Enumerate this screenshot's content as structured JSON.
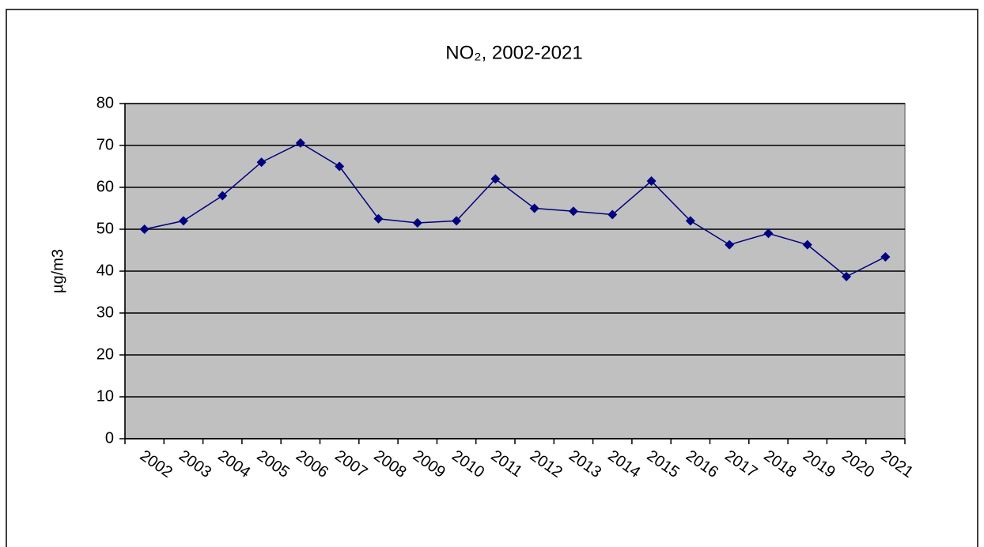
{
  "chart_data": {
    "type": "line",
    "title": "NO₂, 2002-2021",
    "y_label": "µg/m3",
    "categories": [
      "2002",
      "2003",
      "2004",
      "2005",
      "2006",
      "2007",
      "2008",
      "2009",
      "2010",
      "2011",
      "2012",
      "2013",
      "2014",
      "2015",
      "2016",
      "2017",
      "2018",
      "2019",
      "2020",
      "2021"
    ],
    "values": [
      50,
      52,
      58,
      66,
      70.6,
      65,
      52.5,
      51.5,
      52,
      62,
      55,
      54.3,
      53.5,
      61.5,
      52,
      46.3,
      49,
      46.3,
      38.7,
      43.4
    ],
    "color": "#000080",
    "ylim": [
      0,
      80
    ],
    "yticks": [
      0,
      10,
      20,
      30,
      40,
      50,
      60,
      70,
      80
    ],
    "grid": true
  }
}
